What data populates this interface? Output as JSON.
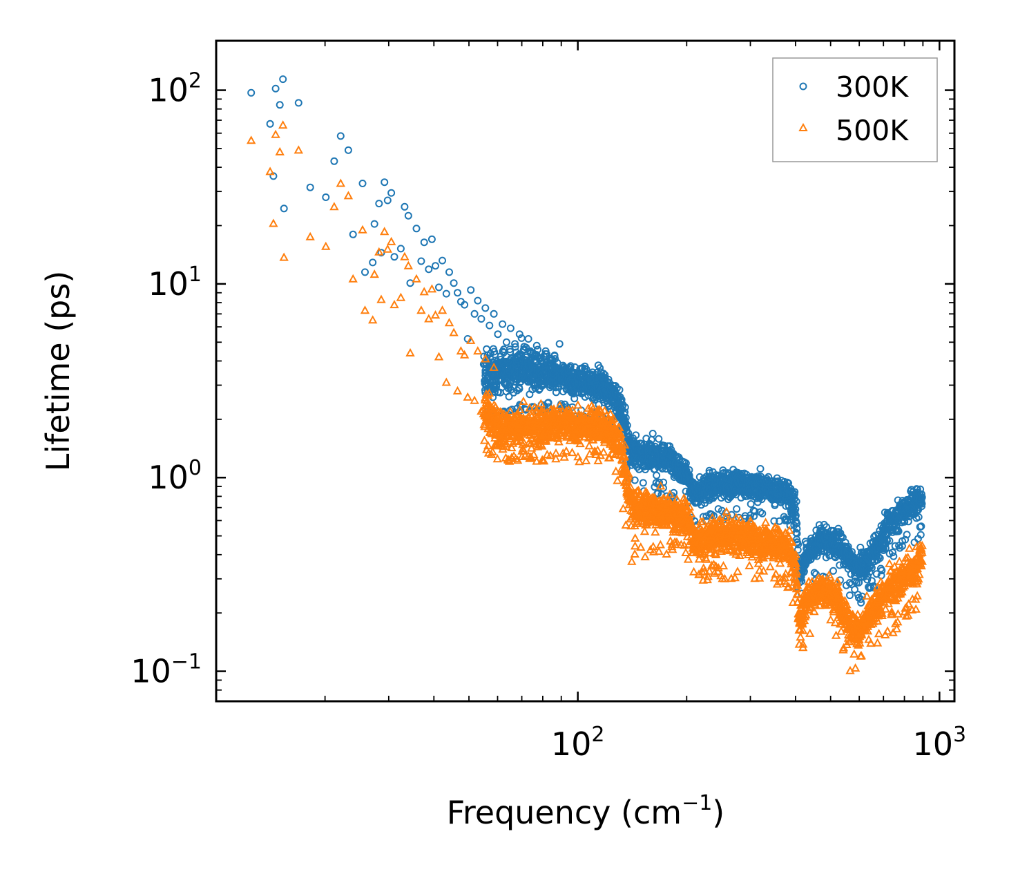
{
  "chart_data": {
    "type": "scatter",
    "title": "",
    "xlabel": "Frequency (cm",
    "xlabel_sup": "−1",
    "xlabel_close": ")",
    "ylabel": "Lifetime (ps)",
    "xscale": "log",
    "yscale": "log",
    "xlim": [
      10,
      1100
    ],
    "ylim": [
      0.07,
      180
    ],
    "x_ticks": [
      {
        "value": 100,
        "base": "10",
        "exp": "2"
      },
      {
        "value": 1000,
        "base": "10",
        "exp": "3"
      }
    ],
    "y_ticks": [
      {
        "value": 0.1,
        "base": "10",
        "exp": "−1"
      },
      {
        "value": 1,
        "base": "10",
        "exp": "0"
      },
      {
        "value": 10,
        "base": "10",
        "exp": "1"
      },
      {
        "value": 100,
        "base": "10",
        "exp": "2"
      }
    ],
    "legend_position": "top-right",
    "series": [
      {
        "name": "300K",
        "color": "#1f77b4",
        "marker": "circle",
        "points": [
          [
            12.5,
            97
          ],
          [
            14.1,
            67
          ],
          [
            14.4,
            36
          ],
          [
            14.6,
            102
          ],
          [
            15.0,
            84
          ],
          [
            15.3,
            114
          ],
          [
            15.4,
            24.5
          ],
          [
            16.9,
            86
          ],
          [
            18.2,
            31.5
          ],
          [
            20.1,
            28
          ],
          [
            21.2,
            43
          ],
          [
            22.1,
            58
          ],
          [
            23.2,
            49
          ],
          [
            23.9,
            18
          ],
          [
            25.4,
            33
          ],
          [
            25.8,
            11.5
          ],
          [
            27.1,
            12.9
          ],
          [
            27.4,
            20.4
          ],
          [
            28.2,
            26
          ],
          [
            28.6,
            14.5
          ],
          [
            29.2,
            33.5
          ],
          [
            29.8,
            27
          ],
          [
            30.5,
            29.5
          ],
          [
            31.1,
            13.8
          ],
          [
            32.4,
            15.2
          ],
          [
            33.2,
            25
          ],
          [
            34.0,
            22.5
          ],
          [
            34.4,
            10.1
          ],
          [
            35.8,
            19.3
          ],
          [
            36.9,
            13.1
          ],
          [
            37.6,
            16.4
          ],
          [
            38.7,
            11.9
          ],
          [
            39.5,
            17
          ],
          [
            40.4,
            12.4
          ],
          [
            41.3,
            9.6
          ],
          [
            42.2,
            13.2
          ],
          [
            43.3,
            8.9
          ],
          [
            44.1,
            11.5
          ],
          [
            45.4,
            10.1
          ],
          [
            46.5,
            9.0
          ],
          [
            47.5,
            8.1
          ],
          [
            48.6,
            7.8
          ],
          [
            49.6,
            5.2
          ],
          [
            50.6,
            9.3
          ],
          [
            51.8,
            7.0
          ],
          [
            52.9,
            8.2
          ],
          [
            54.1,
            6.6
          ],
          [
            55.5,
            7.5
          ],
          [
            57.0,
            6.1
          ],
          [
            58.6,
            7.0
          ],
          [
            60.1,
            5.5
          ],
          [
            61.9,
            6.2
          ],
          [
            63.5,
            5.0
          ],
          [
            65.2,
            5.9
          ],
          [
            67.0,
            4.9
          ],
          [
            69.0,
            5.5
          ],
          [
            71.0,
            4.6
          ],
          [
            73.0,
            5.2
          ],
          [
            75.0,
            4.3
          ],
          [
            77.0,
            4.8
          ],
          [
            79.0,
            4.0
          ],
          [
            81.5,
            4.5
          ],
          [
            84.0,
            3.6
          ],
          [
            86.5,
            4.1
          ],
          [
            89.0,
            4.9
          ],
          [
            92.0,
            3.3
          ],
          [
            95.0,
            3.7
          ]
        ],
        "bands": [
          [
            55,
            1.9,
            3.3,
            4.8,
            2.8
          ],
          [
            60,
            2.3,
            3.5,
            5.0,
            2.0
          ],
          [
            70,
            2.4,
            3.7,
            5.2,
            2.2
          ],
          [
            80,
            2.5,
            3.5,
            5.0,
            2.2
          ],
          [
            90,
            2.5,
            3.3,
            4.5,
            2.2
          ],
          [
            100,
            2.3,
            3.1,
            4.0,
            2.0
          ],
          [
            115,
            2.2,
            3.0,
            4.0,
            2.0
          ],
          [
            125,
            2.0,
            2.7,
            3.5,
            1.8
          ],
          [
            132,
            1.6,
            2.2,
            3.0,
            1.4
          ],
          [
            140,
            1.0,
            1.35,
            1.8,
            0.8
          ],
          [
            160,
            0.95,
            1.3,
            1.7,
            0.8
          ],
          [
            180,
            0.95,
            1.25,
            1.6,
            0.8
          ],
          [
            200,
            0.85,
            1.05,
            1.35,
            0.7
          ],
          [
            212,
            0.62,
            0.8,
            1.05,
            0.55
          ],
          [
            240,
            0.7,
            0.92,
            1.15,
            0.6
          ],
          [
            270,
            0.7,
            0.92,
            1.15,
            0.6
          ],
          [
            300,
            0.68,
            0.9,
            1.15,
            0.6
          ],
          [
            340,
            0.66,
            0.88,
            1.1,
            0.55
          ],
          [
            380,
            0.62,
            0.82,
            1.05,
            0.55
          ],
          [
            400,
            0.5,
            0.7,
            1.0,
            0.22
          ],
          [
            410,
            0.24,
            0.3,
            0.4,
            0.22
          ],
          [
            430,
            0.32,
            0.42,
            0.55,
            0.28
          ],
          [
            470,
            0.35,
            0.48,
            0.62,
            0.3
          ],
          [
            520,
            0.35,
            0.46,
            0.6,
            0.3
          ],
          [
            560,
            0.3,
            0.38,
            0.5,
            0.25
          ],
          [
            600,
            0.25,
            0.33,
            0.45,
            0.22
          ],
          [
            640,
            0.28,
            0.38,
            0.48,
            0.25
          ],
          [
            690,
            0.35,
            0.48,
            0.62,
            0.3
          ],
          [
            740,
            0.45,
            0.6,
            0.78,
            0.38
          ],
          [
            800,
            0.5,
            0.68,
            0.85,
            0.42
          ],
          [
            860,
            0.55,
            0.75,
            0.95,
            0.45
          ],
          [
            895,
            0.58,
            0.78,
            0.95,
            0.5
          ]
        ]
      },
      {
        "name": "500K",
        "color": "#ff7f0e",
        "marker": "triangle",
        "points": [
          [
            12.5,
            55
          ],
          [
            14.1,
            38
          ],
          [
            14.4,
            20.5
          ],
          [
            14.6,
            59
          ],
          [
            15.0,
            48
          ],
          [
            15.3,
            66
          ],
          [
            15.4,
            13.7
          ],
          [
            16.9,
            49
          ],
          [
            18.2,
            17.5
          ],
          [
            20.1,
            15.6
          ],
          [
            21.2,
            25
          ],
          [
            22.1,
            33
          ],
          [
            23.2,
            28.5
          ],
          [
            23.9,
            10.6
          ],
          [
            25.4,
            19
          ],
          [
            25.8,
            7.3
          ],
          [
            27.1,
            6.5
          ],
          [
            27.4,
            11.2
          ],
          [
            28.2,
            14.6
          ],
          [
            28.6,
            8.3
          ],
          [
            29.2,
            18.6
          ],
          [
            29.8,
            15.1
          ],
          [
            30.5,
            16.5
          ],
          [
            31.1,
            7.8
          ],
          [
            32.4,
            8.5
          ],
          [
            33.2,
            13.8
          ],
          [
            34.0,
            12.4
          ],
          [
            34.4,
            4.4
          ],
          [
            35.8,
            10.6
          ],
          [
            36.9,
            7.3
          ],
          [
            37.6,
            9.1
          ],
          [
            38.7,
            6.6
          ],
          [
            39.5,
            9.4
          ],
          [
            40.4,
            6.9
          ],
          [
            41.3,
            4.2
          ],
          [
            42.2,
            7.3
          ],
          [
            43.3,
            3.1
          ],
          [
            44.1,
            6.3
          ],
          [
            45.4,
            5.6
          ],
          [
            46.5,
            2.8
          ],
          [
            47.5,
            4.5
          ],
          [
            48.6,
            4.3
          ],
          [
            49.6,
            2.6
          ],
          [
            50.6,
            5.1
          ],
          [
            51.8,
            2.5
          ],
          [
            52.9,
            4.5
          ],
          [
            54.1,
            2.2
          ],
          [
            55.5,
            4.1
          ],
          [
            57.0,
            2.0
          ],
          [
            58.6,
            3.7
          ]
        ],
        "bands": [
          [
            55,
            1.6,
            2.3,
            3.4,
            1.4
          ],
          [
            60,
            1.3,
            1.8,
            2.7,
            1.2
          ],
          [
            70,
            1.3,
            1.8,
            2.7,
            1.2
          ],
          [
            80,
            1.35,
            1.85,
            2.7,
            1.2
          ],
          [
            90,
            1.4,
            1.9,
            2.6,
            1.25
          ],
          [
            100,
            1.35,
            1.8,
            2.5,
            1.2
          ],
          [
            115,
            1.4,
            1.9,
            2.6,
            1.2
          ],
          [
            125,
            1.25,
            1.7,
            2.3,
            1.1
          ],
          [
            132,
            1.0,
            1.4,
            1.9,
            0.8
          ],
          [
            140,
            0.5,
            0.72,
            1.05,
            0.36
          ],
          [
            160,
            0.48,
            0.68,
            0.95,
            0.4
          ],
          [
            180,
            0.48,
            0.66,
            0.92,
            0.4
          ],
          [
            200,
            0.45,
            0.62,
            0.85,
            0.4
          ],
          [
            212,
            0.33,
            0.45,
            0.62,
            0.28
          ],
          [
            240,
            0.36,
            0.5,
            0.68,
            0.3
          ],
          [
            270,
            0.36,
            0.5,
            0.68,
            0.3
          ],
          [
            300,
            0.35,
            0.48,
            0.66,
            0.3
          ],
          [
            340,
            0.33,
            0.46,
            0.64,
            0.28
          ],
          [
            380,
            0.32,
            0.44,
            0.6,
            0.28
          ],
          [
            400,
            0.25,
            0.34,
            0.48,
            0.12
          ],
          [
            410,
            0.13,
            0.17,
            0.24,
            0.12
          ],
          [
            430,
            0.17,
            0.24,
            0.32,
            0.14
          ],
          [
            470,
            0.2,
            0.27,
            0.36,
            0.16
          ],
          [
            520,
            0.18,
            0.24,
            0.33,
            0.15
          ],
          [
            560,
            0.14,
            0.18,
            0.26,
            0.1
          ],
          [
            600,
            0.12,
            0.16,
            0.22,
            0.1
          ],
          [
            640,
            0.14,
            0.19,
            0.26,
            0.12
          ],
          [
            690,
            0.17,
            0.24,
            0.33,
            0.14
          ],
          [
            740,
            0.2,
            0.28,
            0.38,
            0.15
          ],
          [
            800,
            0.22,
            0.31,
            0.42,
            0.18
          ],
          [
            860,
            0.25,
            0.34,
            0.48,
            0.2
          ],
          [
            895,
            0.3,
            0.4,
            0.65,
            0.25
          ]
        ]
      }
    ]
  }
}
